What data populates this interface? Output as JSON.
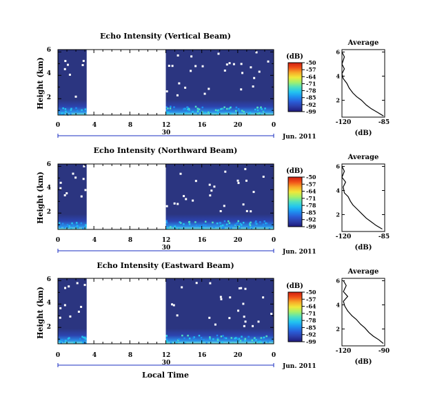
{
  "figure": {
    "xlabel_bottom": "Local Time",
    "date_label": "Jun. 2011",
    "day_label": "30",
    "ylabel": "Height (km)",
    "cbar_unit": "(dB)",
    "avg_title": "Average",
    "avg_xlabel": "(dB)"
  },
  "colors": {
    "background_fill": "#2b3580",
    "colormap": [
      "#1f1a7a",
      "#2b3da8",
      "#2a5cd6",
      "#1e8ff0",
      "#22c4f0",
      "#4fe0c0",
      "#a5f06a",
      "#f0e83a",
      "#f8a828",
      "#f05018",
      "#d01e10"
    ],
    "day_tick_color": "#1a2cc0"
  },
  "chart_data": [
    {
      "type": "heatmap",
      "title": "Echo Intensity (Vertical Beam)",
      "x_ticks": [
        "0",
        "4",
        "8",
        "12",
        "16",
        "20",
        "0"
      ],
      "y_ticks": [
        "2",
        "4",
        "6"
      ],
      "xlim": [
        0,
        24
      ],
      "ylim": [
        0.6,
        6.2
      ],
      "data_gap": [
        3.2,
        12
      ],
      "colorbar_ticks": [
        "-50",
        "-57",
        "-64",
        "-71",
        "-78",
        "-85",
        "-92",
        "-99"
      ],
      "colorbar_range": [
        -99,
        -50
      ],
      "profile": {
        "title": "Average",
        "x_ticks": [
          "-120",
          "-85"
        ],
        "xlim": [
          -120,
          -85
        ],
        "y_ticks": [
          "2",
          "4",
          "6"
        ],
        "ylim": [
          0.6,
          6.2
        ],
        "points": [
          [
            -120,
            6.0
          ],
          [
            -118,
            5.6
          ],
          [
            -120,
            5.0
          ],
          [
            -118,
            4.6
          ],
          [
            -120,
            4.2
          ],
          [
            -119,
            3.8
          ],
          [
            -116,
            3.4
          ],
          [
            -114,
            3.0
          ],
          [
            -111,
            2.6
          ],
          [
            -108,
            2.3
          ],
          [
            -104,
            2.0
          ],
          [
            -100,
            1.6
          ],
          [
            -96,
            1.3
          ],
          [
            -91,
            1.0
          ],
          [
            -86,
            0.7
          ]
        ]
      }
    },
    {
      "type": "heatmap",
      "title": "Echo Intensity (Northward Beam)",
      "x_ticks": [
        "0",
        "4",
        "8",
        "12",
        "16",
        "20",
        "0"
      ],
      "y_ticks": [
        "2",
        "4",
        "6"
      ],
      "xlim": [
        0,
        24
      ],
      "ylim": [
        0.6,
        6.2
      ],
      "data_gap": [
        3.2,
        12
      ],
      "colorbar_ticks": [
        "-50",
        "-57",
        "-64",
        "-71",
        "-78",
        "-85",
        "-92",
        "-99"
      ],
      "colorbar_range": [
        -99,
        -50
      ],
      "profile": {
        "title": "Average",
        "x_ticks": [
          "-120",
          "-85"
        ],
        "xlim": [
          -120,
          -85
        ],
        "y_ticks": [
          "2",
          "4",
          "6"
        ],
        "ylim": [
          0.6,
          6.2
        ],
        "points": [
          [
            -120,
            6.0
          ],
          [
            -118,
            5.6
          ],
          [
            -120,
            5.1
          ],
          [
            -117,
            4.7
          ],
          [
            -119,
            4.3
          ],
          [
            -118,
            3.8
          ],
          [
            -115,
            3.5
          ],
          [
            -113,
            3.1
          ],
          [
            -111,
            2.8
          ],
          [
            -107,
            2.4
          ],
          [
            -104,
            2.1
          ],
          [
            -100,
            1.7
          ],
          [
            -96,
            1.4
          ],
          [
            -92,
            1.1
          ],
          [
            -87,
            0.8
          ]
        ]
      }
    },
    {
      "type": "heatmap",
      "title": "Echo Intensity (Eastward Beam)",
      "x_ticks": [
        "0",
        "4",
        "8",
        "12",
        "16",
        "20",
        "0"
      ],
      "y_ticks": [
        "2",
        "4",
        "6"
      ],
      "xlim": [
        0,
        24
      ],
      "ylim": [
        0.6,
        6.2
      ],
      "data_gap": [
        3.2,
        12
      ],
      "colorbar_ticks": [
        "-50",
        "-57",
        "-64",
        "-71",
        "-78",
        "-85",
        "-92",
        "-99"
      ],
      "colorbar_range": [
        -99,
        -50
      ],
      "profile": {
        "title": "Average",
        "x_ticks": [
          "-120",
          "-90"
        ],
        "xlim": [
          -120,
          -90
        ],
        "y_ticks": [
          "2",
          "4",
          "6"
        ],
        "ylim": [
          0.6,
          6.2
        ],
        "points": [
          [
            -119,
            6.0
          ],
          [
            -117,
            5.6
          ],
          [
            -119,
            5.1
          ],
          [
            -116,
            4.7
          ],
          [
            -119,
            4.3
          ],
          [
            -118,
            3.9
          ],
          [
            -116,
            3.5
          ],
          [
            -113,
            3.1
          ],
          [
            -110,
            2.8
          ],
          [
            -107,
            2.4
          ],
          [
            -104,
            2.1
          ],
          [
            -101,
            1.7
          ],
          [
            -98,
            1.4
          ],
          [
            -94,
            1.1
          ],
          [
            -91,
            0.8
          ]
        ]
      }
    }
  ]
}
